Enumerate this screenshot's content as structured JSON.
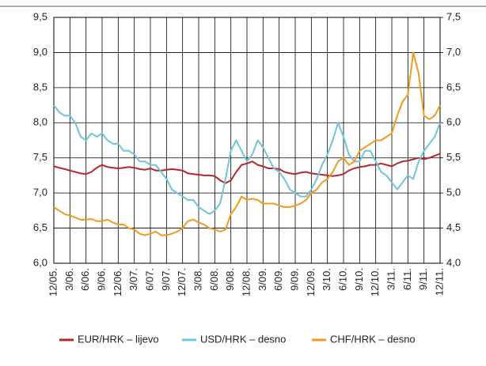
{
  "chart_data": {
    "type": "line",
    "categories": [
      "12/05.",
      null,
      null,
      "3/06.",
      null,
      null,
      "6/06.",
      null,
      null,
      "9/06.",
      null,
      null,
      "12/06.",
      null,
      null,
      "3/07.",
      null,
      null,
      "6/07.",
      null,
      null,
      "9/07.",
      null,
      null,
      "12/07.",
      null,
      null,
      "3/08.",
      null,
      null,
      "6/08.",
      null,
      null,
      "9/08.",
      null,
      null,
      "12/08.",
      null,
      null,
      "3/09.",
      null,
      null,
      "6/09.",
      null,
      null,
      "9/09.",
      null,
      null,
      "12/09.",
      null,
      null,
      "3/10.",
      null,
      null,
      "6/10.",
      null,
      null,
      "9/10.",
      null,
      null,
      "12/10.",
      null,
      null,
      "3/11.",
      null,
      null,
      "6/11.",
      null,
      null,
      "9/11.",
      null,
      null,
      "12/11."
    ],
    "series": [
      {
        "name": "EUR/HRK – lijevo",
        "color": "#b5272d",
        "axis": "y",
        "values": [
          7.38,
          7.36,
          7.34,
          7.32,
          7.3,
          7.28,
          7.27,
          7.3,
          7.36,
          7.4,
          7.37,
          7.36,
          7.35,
          7.36,
          7.37,
          7.36,
          7.34,
          7.33,
          7.35,
          7.32,
          7.32,
          7.33,
          7.34,
          7.33,
          7.32,
          7.28,
          7.27,
          7.26,
          7.25,
          7.25,
          7.24,
          7.18,
          7.14,
          7.18,
          7.3,
          7.4,
          7.42,
          7.45,
          7.4,
          7.38,
          7.35,
          7.35,
          7.34,
          7.3,
          7.28,
          7.27,
          7.29,
          7.3,
          7.28,
          7.27,
          7.26,
          7.25,
          7.24,
          7.25,
          7.27,
          7.32,
          7.35,
          7.37,
          7.38,
          7.4,
          7.4,
          7.42,
          7.4,
          7.38,
          7.42,
          7.45,
          7.46,
          7.48,
          7.5,
          7.48,
          7.5,
          7.53,
          7.56
        ]
      },
      {
        "name": "USD/HRK – desno",
        "color": "#6ec6d4",
        "axis": "y2",
        "values": [
          6.25,
          6.15,
          6.1,
          6.1,
          6.0,
          5.8,
          5.75,
          5.85,
          5.8,
          5.85,
          5.75,
          5.7,
          5.7,
          5.6,
          5.6,
          5.55,
          5.45,
          5.45,
          5.4,
          5.4,
          5.3,
          5.2,
          5.05,
          5.0,
          4.95,
          4.9,
          4.9,
          4.8,
          4.75,
          4.7,
          4.75,
          4.85,
          5.2,
          5.6,
          5.75,
          5.6,
          5.45,
          5.55,
          5.75,
          5.65,
          5.5,
          5.35,
          5.3,
          5.2,
          5.05,
          5.0,
          4.95,
          4.95,
          5.05,
          5.2,
          5.4,
          5.55,
          5.75,
          6.0,
          5.8,
          5.55,
          5.45,
          5.45,
          5.6,
          5.6,
          5.45,
          5.3,
          5.25,
          5.15,
          5.05,
          5.15,
          5.25,
          5.2,
          5.45,
          5.6,
          5.7,
          5.8,
          6.0
        ]
      },
      {
        "name": "CHF/HRK – desno",
        "color": "#f39a1e",
        "axis": "y2",
        "values": [
          4.8,
          4.75,
          4.7,
          4.68,
          4.65,
          4.62,
          4.62,
          4.63,
          4.6,
          4.6,
          4.62,
          4.58,
          4.55,
          4.55,
          4.5,
          4.48,
          4.42,
          4.4,
          4.42,
          4.45,
          4.4,
          4.4,
          4.42,
          4.45,
          4.5,
          4.6,
          4.62,
          4.58,
          4.55,
          4.5,
          4.48,
          4.45,
          4.48,
          4.7,
          4.8,
          4.95,
          4.9,
          4.92,
          4.9,
          4.85,
          4.85,
          4.85,
          4.82,
          4.8,
          4.8,
          4.82,
          4.85,
          4.9,
          5.0,
          5.05,
          5.15,
          5.2,
          5.3,
          5.45,
          5.5,
          5.4,
          5.45,
          5.6,
          5.65,
          5.7,
          5.75,
          5.75,
          5.8,
          5.85,
          6.1,
          6.3,
          6.4,
          7.0,
          6.7,
          6.1,
          6.05,
          6.1,
          6.25
        ]
      }
    ],
    "ylim": [
      6.0,
      9.5
    ],
    "yticks": [
      {
        "value": 6.0,
        "label": "6,0"
      },
      {
        "value": 6.5,
        "label": "6,5"
      },
      {
        "value": 7.0,
        "label": "7,0"
      },
      {
        "value": 7.5,
        "label": "7,5"
      },
      {
        "value": 8.0,
        "label": "8,0"
      },
      {
        "value": 8.5,
        "label": "8,5"
      },
      {
        "value": 9.0,
        "label": "9,0"
      },
      {
        "value": 9.5,
        "label": "9,5"
      }
    ],
    "y2lim": [
      4.0,
      7.5
    ],
    "y2ticks": [
      {
        "value": 4.0,
        "label": "4,0"
      },
      {
        "value": 4.5,
        "label": "4,5"
      },
      {
        "value": 5.0,
        "label": "5,0"
      },
      {
        "value": 5.5,
        "label": "5,5"
      },
      {
        "value": 6.0,
        "label": "6,0"
      },
      {
        "value": 6.5,
        "label": "6,5"
      },
      {
        "value": 7.0,
        "label": "7,0"
      },
      {
        "value": 7.5,
        "label": "7,5"
      }
    ],
    "grid": true
  }
}
